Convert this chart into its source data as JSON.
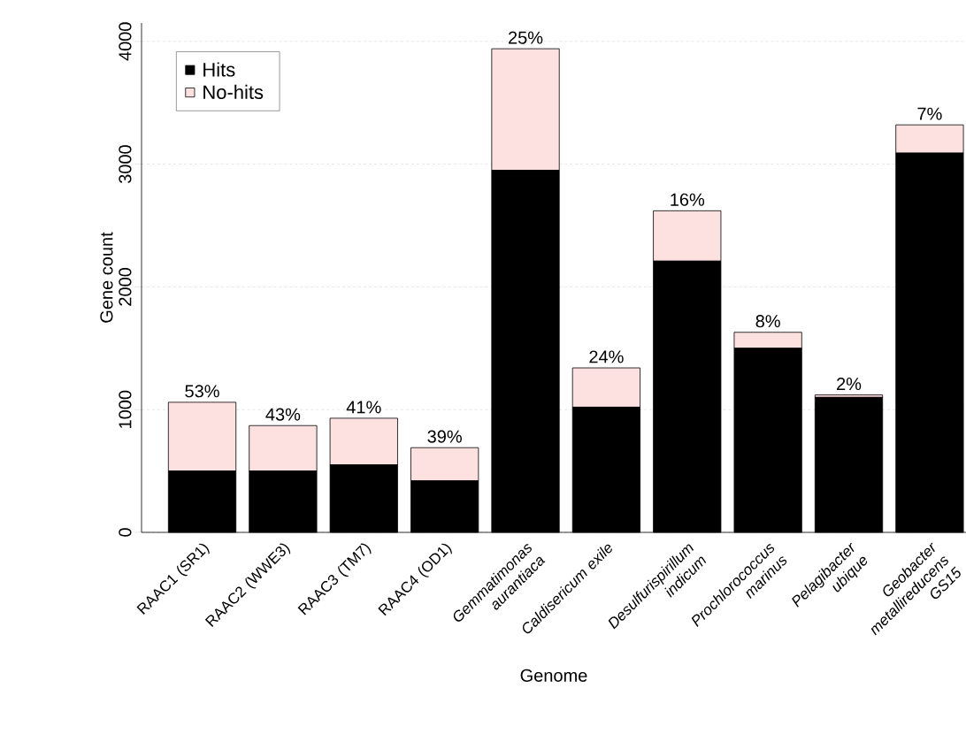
{
  "chart_data": {
    "type": "bar",
    "stacked": true,
    "xlabel": "Genome",
    "ylabel": "Gene count",
    "categories": [
      "RAAC1 (SR1)",
      "RAAC2 (WWE3)",
      "RAAC3 (TM7)",
      "RAAC4 (OD1)",
      "*Gemmatimonas aurantiaca*",
      "*Caldisericum exile*",
      "*Desulfurispirillum indicum*",
      "*Prochlorococcus marinus*",
      "*Pelagibacter ubique*",
      "*Geobacter metallireducens GS15*"
    ],
    "series": [
      {
        "name": "Hits",
        "color": "#000000",
        "values": [
          500,
          500,
          550,
          420,
          2950,
          1020,
          2210,
          1500,
          1100,
          3090
        ]
      },
      {
        "name": "No-hits",
        "color": "#fde0e0",
        "values": [
          560,
          370,
          380,
          270,
          990,
          320,
          410,
          130,
          20,
          230
        ]
      }
    ],
    "annotations": [
      {
        "text": "53%",
        "x": "RAAC1 (SR1)",
        "y": 1060
      },
      {
        "text": "43%",
        "x": "RAAC2 (WWE3)",
        "y": 870
      },
      {
        "text": "41%",
        "x": "RAAC3 (TM7)",
        "y": 930
      },
      {
        "text": "39%",
        "x": "RAAC4 (OD1)",
        "y": 690
      },
      {
        "text": "25%",
        "x": "*Gemmatimonas aurantiaca*",
        "y": 3940
      },
      {
        "text": "24%",
        "x": "*Caldisericum exile*",
        "y": 1340
      },
      {
        "text": "16%",
        "x": "*Desulfurispirillum indicum*",
        "y": 2620
      },
      {
        "text": "8%",
        "x": "*Prochlorococcus marinus*",
        "y": 1630
      },
      {
        "text": "2%",
        "x": "*Pelagibacter ubique*",
        "y": 1120
      },
      {
        "text": "7%",
        "x": "*Geobacter metallireducens GS15*",
        "y": 3320
      }
    ],
    "ylim": [
      0,
      4150
    ],
    "yticks": [
      0,
      1000,
      2000,
      3000,
      4000
    ],
    "grid": "y",
    "legend": "top left"
  }
}
